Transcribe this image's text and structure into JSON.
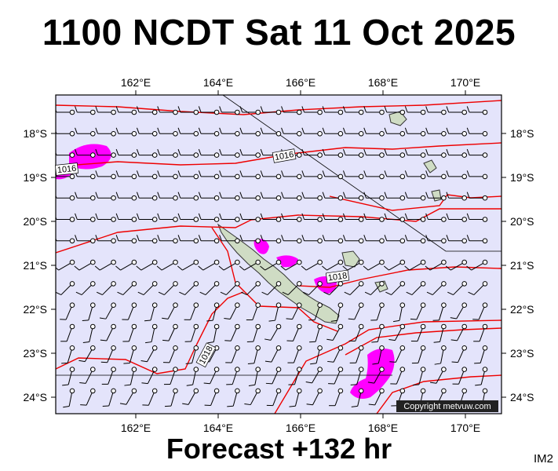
{
  "header": {
    "title": "1100 NCDT Sat 11 Oct 2025"
  },
  "footer": {
    "forecast": "Forecast +132 hr",
    "product_tag": "IM2"
  },
  "map": {
    "region": "New Caledonia",
    "longitude_labels": [
      "162°E",
      "164°E",
      "166°E",
      "168°E",
      "170°E"
    ],
    "latitude_labels": [
      "18°S",
      "19°S",
      "20°S",
      "21°S",
      "22°S",
      "23°S",
      "24°S"
    ],
    "isobar_labels": [
      "1016",
      "1016",
      "1018",
      "1018"
    ],
    "copyright": "Copyright metvuw.com",
    "colors": {
      "ocean": "#e4e4fb",
      "land": "#cfdcc4",
      "isobar": "#ee0000",
      "rain": "#ff00ff",
      "wind_barb": "#000000"
    }
  }
}
